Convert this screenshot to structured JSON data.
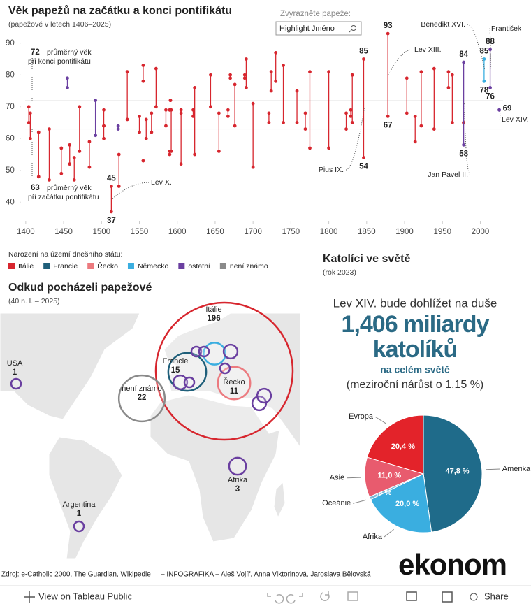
{
  "chart_data": [
    {
      "type": "dumbbell",
      "title": "Věk papežů na začátku a konci pontifikátu",
      "subtitle": "(papežové v letech 1406–2025)",
      "search_label": "Zvýrazněte papeže:",
      "search_placeholder": "Highlight  Jméno",
      "legend_title": "Narození na území dnešního státu:",
      "xlim": [
        1390,
        2030
      ],
      "xticks": [
        1400,
        1450,
        1500,
        1550,
        1600,
        1650,
        1700,
        1750,
        1800,
        1850,
        1900,
        1950,
        2000
      ],
      "ylim": [
        35,
        95
      ],
      "yticks": [
        40,
        50,
        60,
        70,
        80,
        90
      ],
      "averages": {
        "end": 72,
        "end_text": [
          "průměrný věk",
          "při konci pontifikátu"
        ],
        "start": 63,
        "start_text": [
          "průměrný věk",
          "při začátku pontifikátu"
        ]
      },
      "series": [
        {
          "name": "Itálie",
          "color": "#d7262e",
          "x": [
            1404,
            1406,
            1417,
            1431,
            1447,
            1458,
            1464,
            1471,
            1484,
            1503,
            1503,
            1513,
            1523,
            1534,
            1550,
            1555,
            1555,
            1559,
            1566,
            1572,
            1585,
            1590,
            1590,
            1591,
            1592,
            1605,
            1605,
            1621,
            1623,
            1644,
            1655,
            1667,
            1670,
            1676,
            1689,
            1691,
            1700,
            1721,
            1724,
            1730,
            1740,
            1758,
            1769,
            1775,
            1800,
            1823,
            1829,
            1831,
            1846,
            1878,
            1903,
            1914,
            1922,
            1939,
            1958,
            1963,
            1978
          ],
          "start": [
            65,
            60,
            48,
            47,
            49,
            52,
            47,
            56,
            51,
            64,
            60,
            37,
            45,
            66,
            62,
            53,
            78,
            60,
            62,
            70,
            64,
            69,
            55,
            72,
            56,
            69,
            52,
            67,
            55,
            70,
            56,
            67,
            79,
            64,
            79,
            76,
            51,
            65,
            75,
            78,
            65,
            65,
            63,
            57,
            57,
            63,
            67,
            65,
            54,
            67,
            68,
            59,
            64,
            63,
            76,
            65,
            65
          ],
          "end": [
            70,
            68,
            62,
            63,
            57,
            58,
            54,
            70,
            59,
            64,
            69,
            45,
            55,
            81,
            67,
            53,
            83,
            66,
            68,
            82,
            69,
            69,
            56,
            72,
            69,
            69,
            68,
            69,
            76,
            80,
            68,
            69,
            80,
            77,
            80,
            85,
            71,
            68,
            81,
            87,
            83,
            75,
            68,
            81,
            81,
            68,
            69,
            80,
            85,
            93,
            79,
            67,
            81,
            82,
            81,
            80,
            65
          ],
          "names": [
            null,
            null,
            null,
            null,
            null,
            null,
            null,
            null,
            null,
            null,
            null,
            "Lev X.",
            null,
            null,
            null,
            null,
            null,
            null,
            null,
            null,
            null,
            null,
            null,
            null,
            null,
            null,
            null,
            null,
            null,
            null,
            null,
            null,
            null,
            null,
            null,
            null,
            null,
            null,
            null,
            null,
            null,
            null,
            null,
            null,
            null,
            null,
            null,
            null,
            "Pius IX.",
            "Lev XIII.",
            null,
            null,
            null,
            null,
            null,
            null,
            null
          ]
        },
        {
          "name": "Francie",
          "color": "#1f5f7a",
          "x": [],
          "start": [],
          "end": [],
          "names": []
        },
        {
          "name": "Řecko",
          "color": "#ec7a7f",
          "x": [],
          "start": [],
          "end": [],
          "names": []
        },
        {
          "name": "Německo",
          "color": "#3aaee0",
          "x": [
            2005
          ],
          "start": [
            78
          ],
          "end": [
            85
          ],
          "names": [
            "Benedikt XVI."
          ]
        },
        {
          "name": "ostatní",
          "color": "#6a3fa0",
          "x": [
            1455,
            1492,
            1522,
            1978,
            2013,
            2025
          ],
          "start": [
            76,
            61,
            63,
            58,
            76,
            69
          ],
          "end": [
            79,
            72,
            64,
            84,
            88,
            69
          ],
          "names": [
            null,
            null,
            null,
            "Jan Pavel II.",
            "František",
            "Lev XIV."
          ]
        },
        {
          "name": "není známo",
          "color": "#8a8a8a",
          "x": [],
          "start": [],
          "end": [],
          "names": []
        }
      ]
    },
    {
      "type": "bubble-map",
      "title": "Odkud pocházeli papežové",
      "subtitle": "(40 n. l. – 2025)",
      "labels": [
        "Itálie",
        "Francie",
        "Řecko",
        "není známo",
        "USA",
        "Argentina",
        "Afrika",
        null,
        null,
        null,
        null,
        null,
        null,
        null,
        null,
        null
      ],
      "values": [
        196,
        15,
        11,
        22,
        1,
        1,
        3,
        5,
        1,
        1,
        2,
        1,
        2,
        1,
        2,
        2
      ],
      "colors": [
        "#d7262e",
        "#1f5f7a",
        "#ec7a7f",
        "#8a8a8a",
        "#6a3fa0",
        "#6a3fa0",
        "#6a3fa0",
        "#3aaee0",
        "#6a3fa0",
        "#6a3fa0",
        "#6a3fa0",
        "#6a3fa0",
        "#6a3fa0",
        "#6a3fa0",
        "#6a3fa0",
        "#6a3fa0"
      ]
    },
    {
      "type": "pie",
      "title": "Katolíci ve světě",
      "subtitle": "(rok 2023)",
      "intro": "Lev XIV. bude dohlížet na duše",
      "headline": [
        "1,406 miliardy",
        "katolíků"
      ],
      "region": "na celém světě",
      "growth": "(meziroční nárůst o 1,15 %)",
      "categories": [
        "Amerika",
        "Afrika",
        "Oceánie",
        "Asie",
        "Evropa"
      ],
      "values": [
        47.8,
        20.0,
        0.8,
        11.0,
        20.4
      ],
      "value_labels": [
        "47,8 %",
        "20,0 %",
        "0,8 %",
        "11,0 %",
        "20,4 %"
      ],
      "colors": [
        "#1f6b8a",
        "#3aaee0",
        "#7fb9d6",
        "#e85b6e",
        "#e3232a"
      ]
    }
  ],
  "footer": {
    "source": "Zdroj: e-Catholic 2000, The Guardian, Wikipedie",
    "credits": "– INFOGRAFIKA –  Aleš Vojíř, Anna Viktorinová, Jaroslava Bělovská",
    "logo": "ekonom"
  },
  "toolbar": {
    "view": "View on Tableau Public",
    "share": "Share"
  }
}
